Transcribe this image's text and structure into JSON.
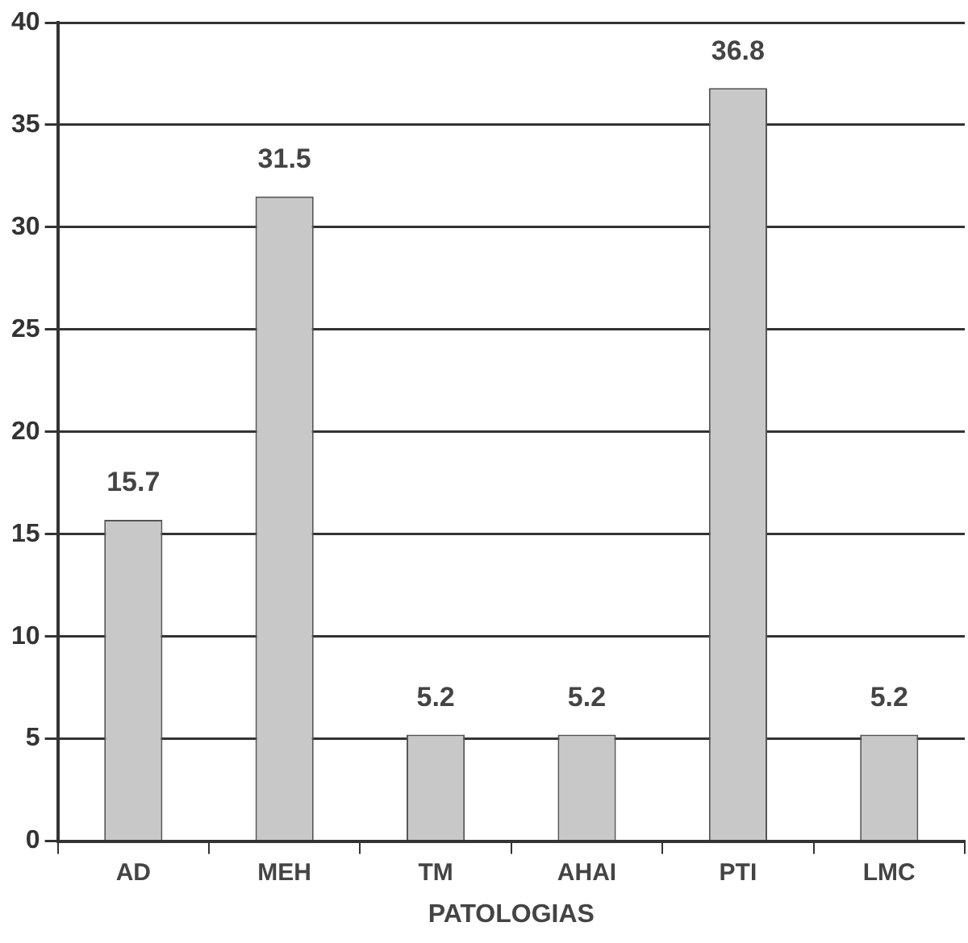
{
  "chart_data": {
    "type": "bar",
    "xlabel": "PATOLOGIAS",
    "categories": [
      "AD",
      "MEH",
      "TM",
      "AHAI",
      "PTI",
      "LMC"
    ],
    "values": [
      15.7,
      31.5,
      5.2,
      5.2,
      36.8,
      5.2
    ],
    "color": "#c8c8c8",
    "ylim": [
      0,
      40
    ],
    "yticks": [
      0,
      5,
      10,
      15,
      20,
      25,
      30,
      35,
      40
    ],
    "grid": "y",
    "data_labels": true,
    "legend": false
  }
}
